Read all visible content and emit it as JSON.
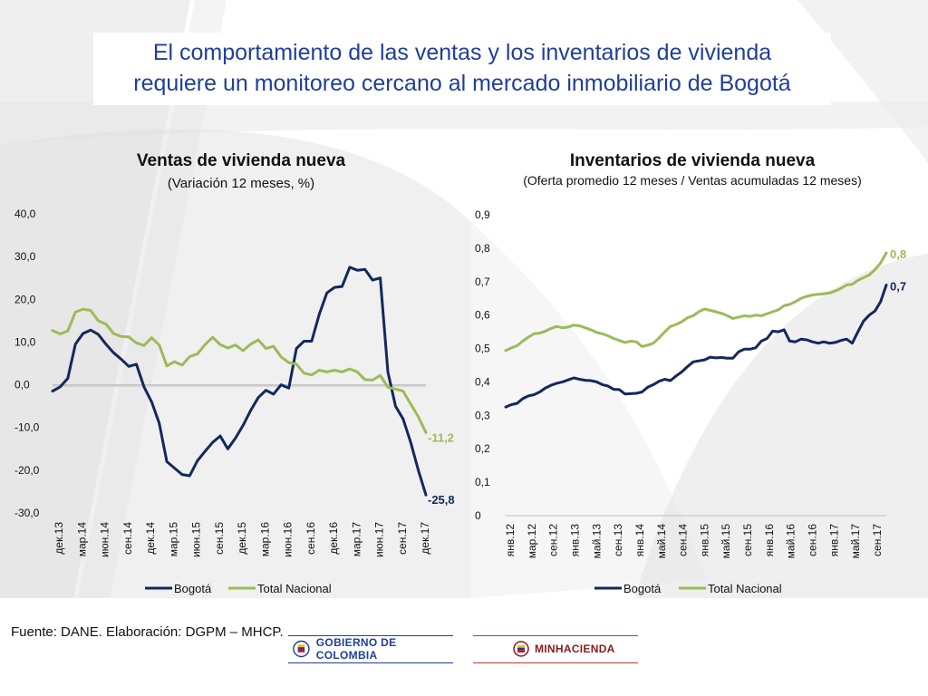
{
  "slide": {
    "title_line1": "El comportamiento de las ventas y los inventarios de vivienda",
    "title_line2": "requiere un monitoreo cercano al mercado inmobiliario de Bogotá",
    "footer": "Fuente: DANE. Elaboración: DGPM – MHCP.",
    "logo_left": "GOBIERNO DE COLOMBIA",
    "logo_right": "MINHACIENDA"
  },
  "colors": {
    "title": "#1f3f99",
    "bogota": "#14285e",
    "nacional": "#9bbb59",
    "band": "#d6d6d6"
  },
  "chart_data": [
    {
      "type": "line",
      "title": "Ventas de vivienda nueva",
      "subtitle": "(Variación 12 meses, %)",
      "ylim": [
        -30,
        40
      ],
      "yticks": [
        "40,0",
        "30,0",
        "20,0",
        "10,0",
        "0,0",
        "-10,0",
        "-20,0",
        "-30,0"
      ],
      "xticks": [
        "дек.13",
        "мар.14",
        "июн.14",
        "сен.14",
        "дек.14",
        "мар.15",
        "июн.15",
        "сен.15",
        "дек.15",
        "мар.16",
        "июн.16",
        "сен.16",
        "дек.16",
        "мар.17",
        "июн.17",
        "сен.17",
        "дек.17"
      ],
      "legend": [
        "Bogotá",
        "Total Nacional"
      ],
      "legend_position": "bottom",
      "series": [
        {
          "name": "Bogotá",
          "end_label": "-25,8",
          "values": [
            -1.5,
            -0.5,
            1.5,
            9.5,
            12.0,
            12.8,
            11.8,
            9.5,
            7.5,
            6.0,
            4.3,
            4.8,
            -0.5,
            -4.0,
            -9.0,
            -18.0,
            -19.5,
            -21.0,
            -21.3,
            -17.8,
            -15.6,
            -13.5,
            -12.0,
            -15.0,
            -12.5,
            -9.5,
            -6.0,
            -3.0,
            -1.3,
            -2.2,
            0.0,
            -0.8,
            8.5,
            10.2,
            10.2,
            16.5,
            21.5,
            22.8,
            23.0,
            27.5,
            26.8,
            27.0,
            24.5,
            25.0,
            3.0,
            -5.0,
            -8.0,
            -13.5,
            -20.0,
            -25.8
          ]
        },
        {
          "name": "Total Nacional",
          "end_label": "-11,2",
          "values": [
            12.7,
            11.9,
            12.6,
            17.0,
            17.7,
            17.4,
            15.0,
            14.2,
            12.0,
            11.3,
            11.2,
            9.8,
            9.2,
            11.0,
            9.3,
            4.4,
            5.4,
            4.6,
            6.6,
            7.2,
            9.4,
            11.1,
            9.4,
            8.6,
            9.3,
            8.0,
            9.5,
            10.5,
            8.5,
            9.0,
            6.5,
            5.2,
            4.8,
            2.7,
            2.3,
            3.4,
            3.0,
            3.4,
            3.0,
            3.7,
            3.0,
            1.2,
            1.1,
            2.2,
            -0.6,
            -1.0,
            -1.5,
            -4.5,
            -7.5,
            -11.2
          ]
        }
      ]
    },
    {
      "type": "line",
      "title": "Inventarios de vivienda nueva",
      "subtitle": "(Oferta promedio 12 meses / Ventas acumuladas 12 meses)",
      "ylim": [
        0,
        0.9
      ],
      "yticks": [
        "0,9",
        "0,8",
        "0,7",
        "0,6",
        "0,5",
        "0,4",
        "0,3",
        "0,2",
        "0,1",
        "0"
      ],
      "xticks": [
        "янв.12",
        "мар.12",
        "сен.12",
        "янв.13",
        "май.13",
        "сен.13",
        "янв.14",
        "май.14",
        "сен.14",
        "янв.15",
        "май.15",
        "сен.15",
        "янв.16",
        "май.16",
        "сен.16",
        "янв.17",
        "май.17",
        "сен.17"
      ],
      "legend": [
        "Bogotá",
        "Total Nacional"
      ],
      "legend_position": "bottom",
      "series": [
        {
          "name": "Bogotá",
          "end_label": "0,7",
          "values": [
            0.325,
            0.332,
            0.336,
            0.35,
            0.358,
            0.362,
            0.37,
            0.382,
            0.39,
            0.396,
            0.4,
            0.406,
            0.412,
            0.408,
            0.405,
            0.404,
            0.4,
            0.392,
            0.388,
            0.378,
            0.377,
            0.364,
            0.365,
            0.366,
            0.37,
            0.384,
            0.392,
            0.402,
            0.408,
            0.404,
            0.418,
            0.43,
            0.446,
            0.46,
            0.463,
            0.466,
            0.474,
            0.472,
            0.473,
            0.471,
            0.471,
            0.49,
            0.498,
            0.498,
            0.502,
            0.522,
            0.53,
            0.552,
            0.55,
            0.556,
            0.522,
            0.52,
            0.528,
            0.526,
            0.52,
            0.516,
            0.52,
            0.516,
            0.518,
            0.524,
            0.528,
            0.516,
            0.55,
            0.582,
            0.6,
            0.612,
            0.64,
            0.69
          ]
        },
        {
          "name": "Total Nacional",
          "end_label": "0,8",
          "values": [
            0.494,
            0.502,
            0.508,
            0.522,
            0.534,
            0.544,
            0.546,
            0.552,
            0.56,
            0.566,
            0.562,
            0.564,
            0.57,
            0.568,
            0.562,
            0.556,
            0.548,
            0.544,
            0.538,
            0.53,
            0.524,
            0.518,
            0.522,
            0.52,
            0.506,
            0.51,
            0.516,
            0.532,
            0.55,
            0.566,
            0.572,
            0.58,
            0.592,
            0.598,
            0.61,
            0.618,
            0.614,
            0.61,
            0.605,
            0.598,
            0.59,
            0.594,
            0.598,
            0.596,
            0.6,
            0.598,
            0.604,
            0.61,
            0.616,
            0.628,
            0.632,
            0.64,
            0.65,
            0.656,
            0.66,
            0.662,
            0.664,
            0.666,
            0.672,
            0.68,
            0.69,
            0.692,
            0.704,
            0.712,
            0.72,
            0.736,
            0.756,
            0.786
          ]
        }
      ]
    }
  ]
}
